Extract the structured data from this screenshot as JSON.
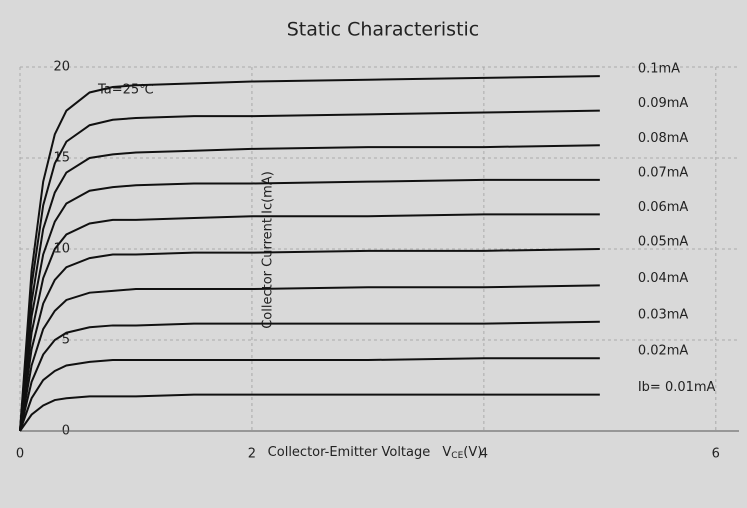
{
  "chart_data": {
    "type": "line",
    "title": "Static Characteristic",
    "annotation": "Ta=25℃",
    "xlabel": "Collector-Emitter Voltage",
    "xlabel_symbol": "V",
    "xlabel_sub": "CE",
    "xlabel_unit": "(V)",
    "ylabel": "Collector Current Ic(mA)",
    "x": [
      0,
      0.1,
      0.2,
      0.3,
      0.4,
      0.6,
      0.8,
      1,
      1.5,
      2,
      3,
      4,
      5
    ],
    "xlim": [
      0,
      6.2
    ],
    "xticks": [
      0,
      2,
      4,
      6
    ],
    "ylim": [
      0,
      20
    ],
    "yticks": [
      0,
      5,
      10,
      15,
      20
    ],
    "grid": true,
    "series": [
      {
        "name": "0.1mA",
        "color": "#111111",
        "values": [
          0,
          8.8,
          13.7,
          16.3,
          17.6,
          18.6,
          18.9,
          19.0,
          19.1,
          19.2,
          19.3,
          19.4,
          19.5
        ]
      },
      {
        "name": "0.09mA",
        "color": "#111111",
        "values": [
          0,
          8.0,
          12.4,
          14.7,
          15.9,
          16.8,
          17.1,
          17.2,
          17.3,
          17.3,
          17.4,
          17.5,
          17.6
        ]
      },
      {
        "name": "0.08mA",
        "color": "#111111",
        "values": [
          0,
          7.1,
          11.1,
          13.1,
          14.2,
          15.0,
          15.2,
          15.3,
          15.4,
          15.5,
          15.6,
          15.6,
          15.7
        ]
      },
      {
        "name": "0.07mA",
        "color": "#111111",
        "values": [
          0,
          6.3,
          9.7,
          11.5,
          12.5,
          13.2,
          13.4,
          13.5,
          13.6,
          13.6,
          13.7,
          13.8,
          13.8
        ]
      },
      {
        "name": "0.06mA",
        "color": "#111111",
        "values": [
          0,
          5.4,
          8.4,
          10.0,
          10.8,
          11.4,
          11.6,
          11.6,
          11.7,
          11.8,
          11.8,
          11.9,
          11.9
        ]
      },
      {
        "name": "0.05mA",
        "color": "#111111",
        "values": [
          0,
          4.5,
          7.0,
          8.3,
          9.0,
          9.5,
          9.7,
          9.7,
          9.8,
          9.8,
          9.9,
          9.9,
          10.0
        ]
      },
      {
        "name": "0.04mA",
        "color": "#111111",
        "values": [
          0,
          3.6,
          5.6,
          6.6,
          7.2,
          7.6,
          7.7,
          7.8,
          7.8,
          7.8,
          7.9,
          7.9,
          8.0
        ]
      },
      {
        "name": "0.03mA",
        "color": "#111111",
        "values": [
          0,
          2.7,
          4.2,
          5.0,
          5.4,
          5.7,
          5.8,
          5.8,
          5.9,
          5.9,
          5.9,
          5.9,
          6.0
        ]
      },
      {
        "name": "0.02mA",
        "color": "#111111",
        "values": [
          0,
          1.8,
          2.8,
          3.3,
          3.6,
          3.8,
          3.9,
          3.9,
          3.9,
          3.9,
          3.9,
          4.0,
          4.0
        ]
      },
      {
        "name": "Ib= 0.01mA",
        "color": "#111111",
        "values": [
          0,
          0.9,
          1.4,
          1.7,
          1.8,
          1.9,
          1.9,
          1.9,
          2.0,
          2.0,
          2.0,
          2.0,
          2.0
        ]
      }
    ]
  }
}
